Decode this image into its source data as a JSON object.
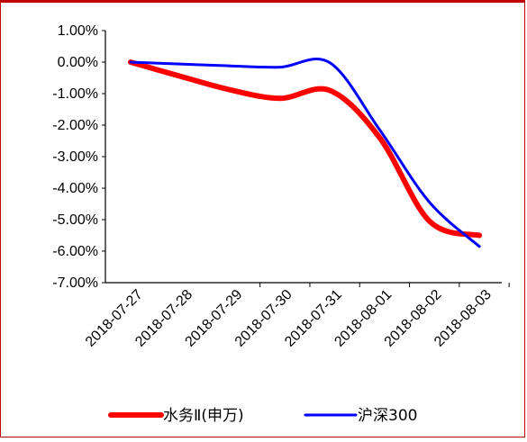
{
  "chart_data": {
    "type": "line",
    "title": "",
    "xlabel": "",
    "ylabel": "",
    "x": [
      "2018-07-27",
      "2018-07-28",
      "2018-07-29",
      "2018-07-30",
      "2018-07-31",
      "2018-08-01",
      "2018-08-02",
      "2018-08-03"
    ],
    "yticks": [
      "1.00%",
      "0.00%",
      "-1.00%",
      "-2.00%",
      "-3.00%",
      "-4.00%",
      "-5.00%",
      "-6.00%",
      "-7.00%"
    ],
    "ylim": [
      -7.0,
      1.0
    ],
    "grid": false,
    "legend_position": "bottom",
    "series": [
      {
        "name": "水务Ⅱ(申万)",
        "color": "#ff0000",
        "values": [
          0.0,
          -0.45,
          -0.88,
          -1.15,
          -0.9,
          -2.4,
          -5.05,
          -5.5
        ]
      },
      {
        "name": "沪深300",
        "color": "#0000ff",
        "values": [
          0.0,
          -0.06,
          -0.12,
          -0.16,
          -0.02,
          -2.15,
          -4.45,
          -5.85
        ]
      }
    ]
  }
}
